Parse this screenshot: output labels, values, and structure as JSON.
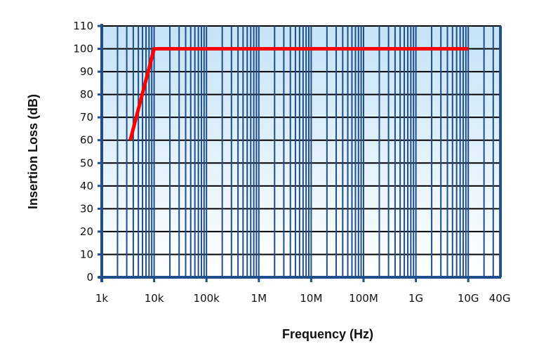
{
  "chart_data": {
    "type": "line",
    "title": "",
    "xlabel": "Frequency (Hz)",
    "ylabel": "Insertion Loss (dB)",
    "x_scale": "log",
    "x_tick_labels": [
      "1k",
      "10k",
      "100k",
      "1M",
      "10M",
      "100M",
      "1G",
      "10G",
      "40G"
    ],
    "x_tick_values": [
      1000,
      10000,
      100000,
      1000000,
      10000000,
      100000000,
      1000000000,
      10000000000,
      40000000000
    ],
    "y_tick_labels": [
      "0",
      "10",
      "20",
      "30",
      "40",
      "50",
      "60",
      "70",
      "80",
      "90",
      "100",
      "110"
    ],
    "xlim": [
      1000,
      40000000000
    ],
    "ylim": [
      0,
      110
    ],
    "grid": true,
    "legend": null,
    "series": [
      {
        "name": "Insertion Loss",
        "color": "#ff0000",
        "x": [
          3500,
          10000,
          10000000000
        ],
        "y": [
          60,
          100,
          100
        ]
      }
    ]
  },
  "colors": {
    "grid_vertical": "#1f4e8c",
    "grid_horizontal": "#000000",
    "plot_bg_top": "#c5e3f7",
    "plot_bg_bottom": "#ffffff",
    "line": "#ff0000"
  }
}
